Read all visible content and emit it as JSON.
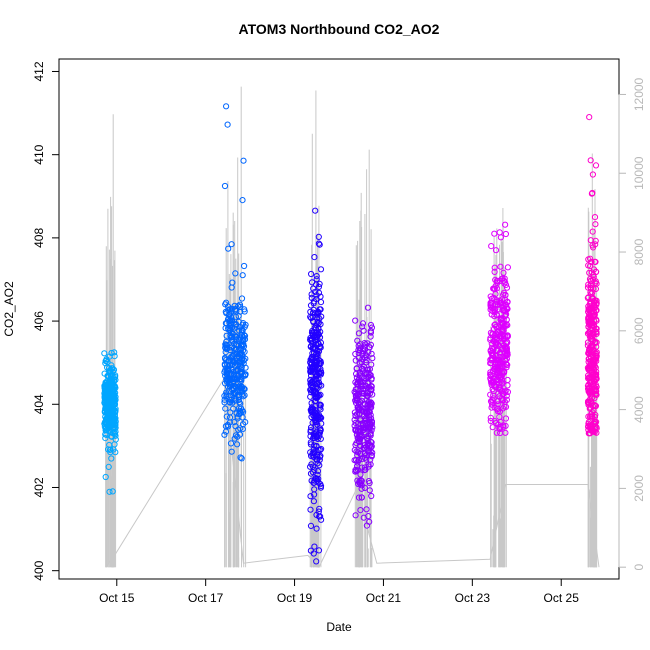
{
  "chart_data": {
    "type": "scatter",
    "title": "ATOM3 Northbound CO2_AO2",
    "xlabel": "Date",
    "ylabel": "CO2_AO2",
    "x_tick_labels": [
      "Oct 15",
      "Oct 17",
      "Oct 19",
      "Oct 21",
      "Oct 23",
      "Oct 25"
    ],
    "x_ticks_day": [
      15,
      17,
      19,
      21,
      23,
      25
    ],
    "xlim_day": [
      13.7,
      26.3
    ],
    "ylim": [
      399.8,
      412.3
    ],
    "y_ticks": [
      400,
      402,
      404,
      406,
      408,
      410,
      412
    ],
    "y_tick_labels": [
      "400",
      "402",
      "404",
      "406",
      "408",
      "410",
      "412"
    ],
    "y2lim": [
      -300,
      12900
    ],
    "y2_ticks": [
      0,
      2000,
      4000,
      6000,
      8000,
      10000,
      12000
    ],
    "y2_tick_labels": [
      "0",
      "2000",
      "4000",
      "6000",
      "8000",
      "10000",
      "12000"
    ],
    "grid": false,
    "legend": "none",
    "clusters": [
      {
        "day_start": 14.72,
        "day_end": 14.98,
        "y_mean": 404.0,
        "y_sd": 0.45,
        "y_min": 401.7,
        "y_max": 405.3,
        "color": "#00a6ff"
      },
      {
        "day_start": 17.42,
        "day_end": 17.9,
        "y_mean": 404.9,
        "y_sd": 0.9,
        "y_min": 402.6,
        "y_max": 411.3,
        "color": "#0066ff"
      },
      {
        "day_start": 19.35,
        "day_end": 19.6,
        "y_mean": 404.2,
        "y_sd": 1.5,
        "y_min": 400.1,
        "y_max": 410.4,
        "color": "#2200ff"
      },
      {
        "day_start": 20.35,
        "day_end": 20.75,
        "y_mean": 403.7,
        "y_sd": 1.0,
        "y_min": 400.9,
        "y_max": 408.3,
        "color": "#8800ff"
      },
      {
        "day_start": 23.4,
        "day_end": 23.8,
        "y_mean": 405.3,
        "y_sd": 1.0,
        "y_min": 403.3,
        "y_max": 410.1,
        "color": "#dd00ff"
      },
      {
        "day_start": 25.6,
        "day_end": 25.8,
        "y_mean": 405.0,
        "y_sd": 1.3,
        "y_min": 403.3,
        "y_max": 411.8,
        "color": "#ff00cc"
      }
    ],
    "secondary_series": {
      "name": "",
      "color": "#c8c8c8",
      "baseline_points": [
        {
          "day": 14.75,
          "value": 0
        },
        {
          "day": 14.95,
          "value": 300
        },
        {
          "day": 17.42,
          "value": 4800
        },
        {
          "day": 17.85,
          "value": 100
        },
        {
          "day": 19.3,
          "value": 300
        },
        {
          "day": 19.55,
          "value": 0
        },
        {
          "day": 20.4,
          "value": 2000
        },
        {
          "day": 20.85,
          "value": 100
        },
        {
          "day": 23.4,
          "value": 200
        },
        {
          "day": 23.75,
          "value": 2100
        },
        {
          "day": 25.6,
          "value": 2100
        },
        {
          "day": 25.85,
          "value": 0
        }
      ],
      "spikes": [
        {
          "day": 14.8,
          "value": 9100
        },
        {
          "day": 14.86,
          "value": 9400
        },
        {
          "day": 14.92,
          "value": 11500
        },
        {
          "day": 17.5,
          "value": 9800
        },
        {
          "day": 17.62,
          "value": 9000
        },
        {
          "day": 17.72,
          "value": 10400
        },
        {
          "day": 17.8,
          "value": 12200
        },
        {
          "day": 19.4,
          "value": 11000
        },
        {
          "day": 19.48,
          "value": 12100
        },
        {
          "day": 20.5,
          "value": 9500
        },
        {
          "day": 20.62,
          "value": 10100
        },
        {
          "day": 20.68,
          "value": 10600
        },
        {
          "day": 23.55,
          "value": 8600
        },
        {
          "day": 23.7,
          "value": 8000
        },
        {
          "day": 25.7,
          "value": 10500
        },
        {
          "day": 25.76,
          "value": 9600
        }
      ]
    }
  }
}
